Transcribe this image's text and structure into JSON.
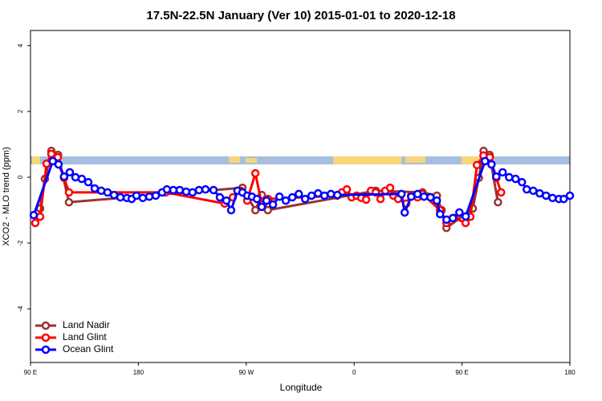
{
  "chart_data": {
    "type": "line",
    "title": "17.5N-22.5N January (Ver 10)   2015-01-01 to 2020-12-18",
    "x_label": "Longitude",
    "y_label": "XCO2 - MLO trend (ppm)",
    "xlim": [
      90,
      540
    ],
    "xticks": [
      {
        "value": 90,
        "label": "90 E"
      },
      180,
      {
        "value": 270,
        "label": "90 W"
      },
      {
        "value": 360,
        "label": "0"
      },
      {
        "value": 450,
        "label": "90 E"
      },
      {
        "value": 540,
        "label": "180"
      }
    ],
    "ylim": [
      -5.63,
      4.46
    ],
    "yticks": [
      -4,
      -2,
      0,
      2,
      4
    ],
    "legend": "bottom-left",
    "series": [
      {
        "name": "Land Nadir",
        "color": "#993333",
        "x": [
          98,
          102,
          107.4,
          113,
          122.1,
          266.8,
          277.6,
          283,
          288,
          378,
          417,
          429,
          433,
          437,
          459,
          464,
          468,
          473,
          480
        ],
        "values": [
          -0.95,
          -0.05,
          0.8,
          0.68,
          -0.76,
          -0.32,
          -1.0,
          -0.54,
          -1.0,
          -0.41,
          -0.46,
          -0.56,
          -1.0,
          -1.54,
          -0.95,
          -0.02,
          0.8,
          0.68,
          -0.76
        ]
      },
      {
        "name": "Land Glint",
        "color": "#ff0000",
        "x": [
          94,
          98,
          103.4,
          107.4,
          112.8,
          118,
          122.1,
          202.6,
          252,
          258.8,
          265.4,
          270.8,
          277.6,
          283,
          288.2,
          345.8,
          349.8,
          353.9,
          357.9,
          362,
          366,
          370,
          374,
          378,
          382,
          386,
          390,
          392.7,
          396.7,
          403.5,
          407.6,
          412.9,
          417,
          431.7,
          437,
          443.8,
          453,
          457,
          462.5,
          467.9,
          473.2,
          478.6,
          482.6
        ],
        "values": [
          -1.39,
          -1.2,
          0.41,
          0.71,
          0.61,
          -0.02,
          -0.46,
          -0.46,
          -0.8,
          -0.61,
          -0.41,
          -0.71,
          0.12,
          -0.83,
          -0.66,
          -0.56,
          -0.46,
          -0.37,
          -0.61,
          -0.56,
          -0.63,
          -0.68,
          -0.41,
          -0.46,
          -0.66,
          -0.41,
          -0.32,
          -0.56,
          -0.66,
          -0.8,
          -0.56,
          -0.61,
          -0.51,
          -1.0,
          -1.39,
          -1.24,
          -1.39,
          -1.2,
          0.37,
          0.66,
          0.61,
          -0.02,
          -0.46
        ]
      },
      {
        "name": "Ocean Glint",
        "color": "#0000ff",
        "x": [
          92.7,
          108.6,
          113.4,
          118,
          122.8,
          127.5,
          132.8,
          138.2,
          143.6,
          149,
          154.3,
          159.7,
          165,
          170.4,
          174.4,
          178.4,
          183.7,
          189.1,
          194.5,
          199.8,
          203.8,
          209.2,
          214.5,
          219.9,
          225.2,
          230.6,
          236,
          242.7,
          248,
          253.4,
          257.4,
          262.7,
          266.8,
          270.8,
          274.8,
          278.9,
          282.9,
          286.9,
          292.3,
          297.7,
          303,
          308.4,
          313.8,
          319.1,
          324.5,
          329.9,
          335.2,
          340.6,
          346,
          399.5,
          402.2,
          407.6,
          412.9,
          418.3,
          423.7,
          429,
          431.7,
          437.1,
          442.4,
          447.8,
          453.1,
          469.2,
          474.6,
          478.6,
          483.9,
          489.3,
          494.7,
          500,
          504,
          509.4,
          514.8,
          520.1,
          525.5,
          530.9,
          534.9,
          540
        ],
        "values": [
          -1.15,
          0.49,
          0.39,
          0.02,
          0.15,
          0,
          -0.05,
          -0.15,
          -0.34,
          -0.41,
          -0.46,
          -0.54,
          -0.61,
          -0.63,
          -0.66,
          -0.56,
          -0.63,
          -0.59,
          -0.56,
          -0.46,
          -0.37,
          -0.39,
          -0.39,
          -0.44,
          -0.46,
          -0.39,
          -0.37,
          -0.39,
          -0.61,
          -0.71,
          -1.0,
          -0.41,
          -0.46,
          -0.56,
          -0.59,
          -0.66,
          -0.9,
          -0.71,
          -0.83,
          -0.59,
          -0.71,
          -0.61,
          -0.51,
          -0.66,
          -0.56,
          -0.49,
          -0.56,
          -0.51,
          -0.54,
          -0.51,
          -1.07,
          -0.59,
          -0.51,
          -0.59,
          -0.61,
          -0.71,
          -1.12,
          -1.29,
          -1.24,
          -1.07,
          -1.19,
          0.49,
          0.39,
          0.02,
          0.15,
          0,
          -0.05,
          -0.15,
          -0.37,
          -0.41,
          -0.49,
          -0.56,
          -0.63,
          -0.66,
          -0.66,
          -0.56
        ]
      }
    ]
  }
}
